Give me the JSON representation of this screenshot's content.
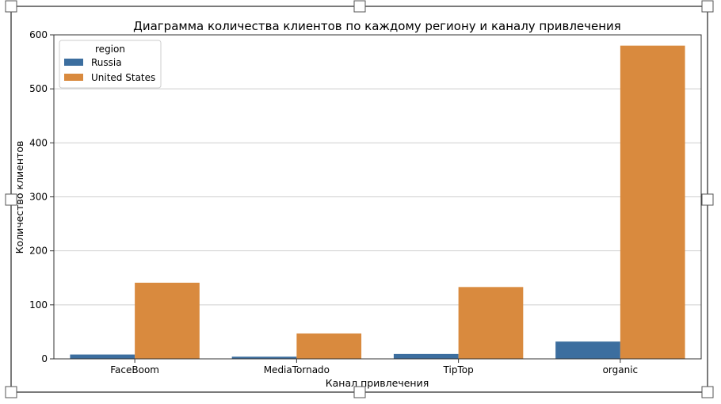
{
  "chart_data": {
    "type": "bar",
    "title": "Диаграмма количества клиентов по каждому региону и каналу привлечения",
    "xlabel": "Канал привлечения",
    "ylabel": "Количество клиентов",
    "categories": [
      "FaceBoom",
      "MediaTornado",
      "TipTop",
      "organic"
    ],
    "series": [
      {
        "name": "Russia",
        "values": [
          8,
          4,
          9,
          32
        ],
        "color": "#3c6e9f"
      },
      {
        "name": "United States",
        "values": [
          141,
          47,
          133,
          580
        ],
        "color": "#d98a3e"
      }
    ],
    "ylim": [
      0,
      600
    ],
    "yticks": [
      0,
      100,
      200,
      300,
      400,
      500,
      600
    ],
    "grid": true,
    "legend": {
      "title": "region",
      "position": "top-left"
    }
  }
}
